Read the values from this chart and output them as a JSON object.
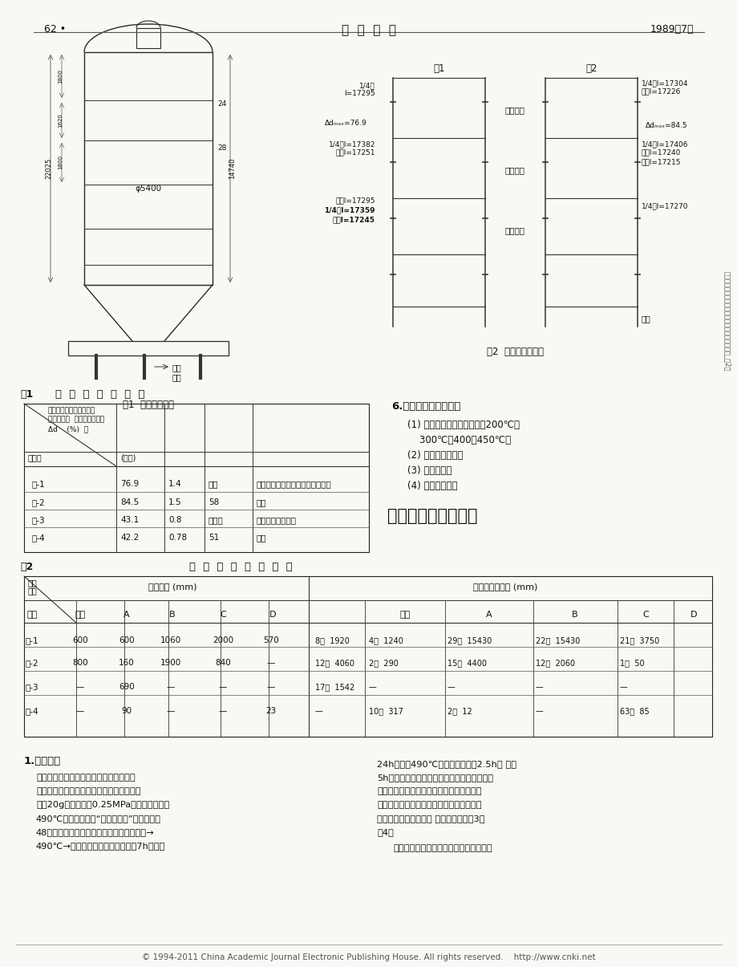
{
  "page_header_left": "62 •",
  "page_header_center": "压  力  容  器",
  "page_header_right": "1989年7月",
  "fig1_caption": "图1  塔结构示意图",
  "fig2_caption": "图2  塔体变形示意图",
  "table1_title": "表1          各  塔  的  变  形  情  况",
  "table1_rows": [
    [
      "塔-1",
      "76.9",
      "1.4",
      "未做",
      "下数第三圈板最大、二、四圈次之"
    ],
    [
      "塔-2",
      "84.5",
      "1.5",
      "58",
      "同上"
    ],
    [
      "塔-3",
      "43.1",
      "0.8",
      "不明显",
      "第三圈大第二圈小"
    ],
    [
      "塔-4",
      "42.2",
      "0.78",
      "51",
      "同上"
    ]
  ],
  "table2_title": "表2           裂  纹  的  长  度  及  分  布",
  "table2_rows": [
    [
      "塔-1",
      "600",
      "600",
      "1060",
      "2000",
      "570",
      "8条  1920",
      "4条  1240",
      "29条  15430",
      "22条  15430",
      "21条  3750"
    ],
    [
      "塔-2",
      "800",
      "160",
      "1900",
      "840",
      "—",
      "12条  4060",
      "2条  290",
      "15条  4400",
      "12条  2060",
      "1条  50"
    ],
    [
      "塔-3",
      "—",
      "690",
      "—",
      "—",
      "—",
      "17条  1542",
      "—",
      "—",
      "—",
      "—"
    ],
    [
      "塔-4",
      "—",
      "90",
      "—",
      "—",
      "23",
      "—",
      "10条  317",
      "2条  12",
      "—",
      "63条  85"
    ]
  ],
  "section1_title": "1.温度测定",
  "section1_left_lines": [
    "焦碳塔的变形与其他容器变形相比，有它",
    "独特的形态。这和它的服务条件有关。塔材",
    "质为20g，设计压力0.25MPa，塔底进料温度",
    "490℃，塔内介质为“含硫重质油”。工作时，",
    "48小时为一个运行周期，连续工作：从常温→",
    "490℃→常温。其中包括：瓦斯预热7h、进油"
  ],
  "section1_right_lines": [
    "24h（油温490℃），吹蒸汽降温2.5h， 水冷",
    "5h，余为放水时间。进油和水冷都是从塔底进",
    "入。这样，就有可能造成塔各部的温度分布",
    "不均。为此，对塔的外表面的纵、环及塔壁",
    "的厚度方向进行了温度 测量，结果见图3、",
    "图4。"
  ],
  "section1_right2": "这两个图表明：在工作的每一瞬间，塔壁",
  "section2_title": "二、变形和开裂原因",
  "section6_title": "6.材料的力学性能试验",
  "section6_items": [
    "(1) 常规的力学性能：常温、200℃、",
    "    300℃、400、450℃；",
    "(2) 断裂韧性测试；",
    "(3) 持久强度；",
    "(4) 热疲劳试验。"
  ],
  "footer": "© 1994-2011 China Academic Journal Electronic Publishing House. All rights reserved.    http://www.cnki.net",
  "side_text": "延迟焦化装置焦碘塔的变形开裂机理和安全分析_第2页",
  "bg_color": "#f5f5f0"
}
